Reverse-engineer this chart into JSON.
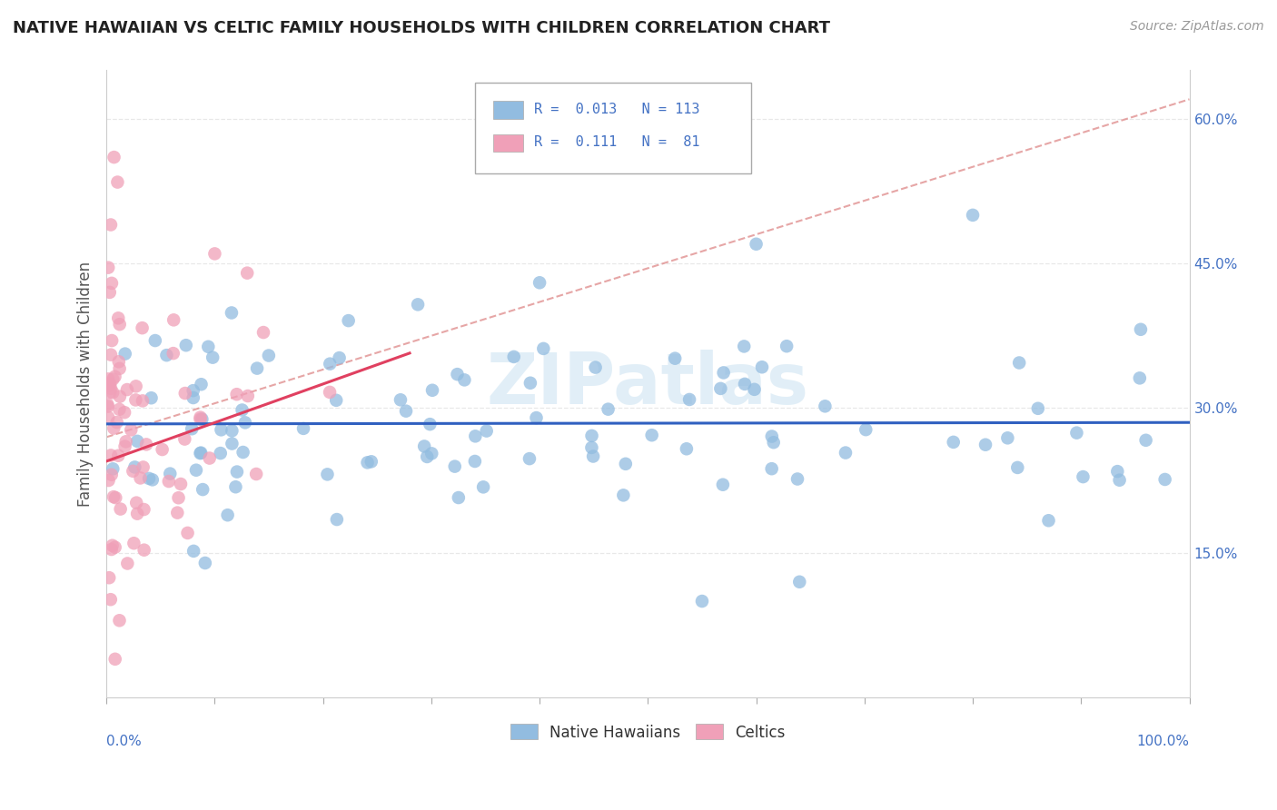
{
  "title": "NATIVE HAWAIIAN VS CELTIC FAMILY HOUSEHOLDS WITH CHILDREN CORRELATION CHART",
  "source": "Source: ZipAtlas.com",
  "ylabel": "Family Households with Children",
  "xlim": [
    0,
    1.0
  ],
  "ylim": [
    0,
    0.65
  ],
  "xtick_positions": [
    0.0,
    0.1,
    0.2,
    0.3,
    0.4,
    0.5,
    0.6,
    0.7,
    0.8,
    0.9,
    1.0
  ],
  "ytick_positions": [
    0.0,
    0.15,
    0.3,
    0.45,
    0.6
  ],
  "ytick_labels": [
    "0.0%",
    "15.0%",
    "30.0%",
    "45.0%",
    "60.0%"
  ],
  "blue_color": "#92bce0",
  "pink_color": "#f0a0b8",
  "blue_line_color": "#3060c0",
  "pink_line_color": "#e04060",
  "dashed_line_color": "#e09090",
  "watermark": "ZIPatlas",
  "watermark_color": "#c5dff0",
  "blue_R": 0.013,
  "blue_N": 113,
  "pink_R": 0.111,
  "pink_N": 81,
  "grid_color": "#e8e8e8",
  "background_color": "#ffffff",
  "legend_label_blue": "Native Hawaiians",
  "legend_label_pink": "Celtics",
  "tick_color": "#4472c4",
  "title_color": "#222222",
  "source_color": "#999999",
  "ylabel_color": "#555555"
}
